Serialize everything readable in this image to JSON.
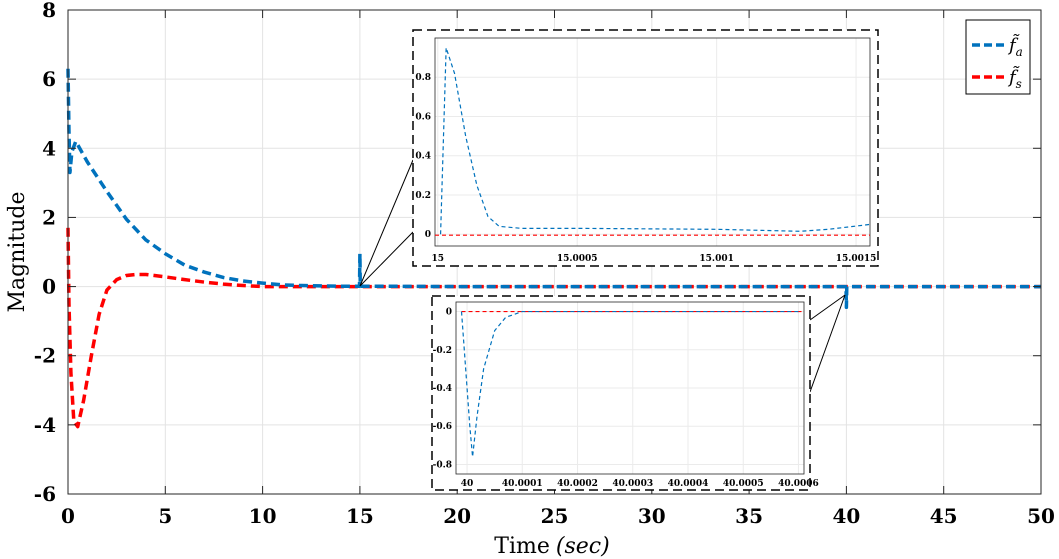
{
  "chart_data": [
    {
      "id": "main",
      "type": "line",
      "title": "",
      "xlabel": "Time",
      "xlabel_unit": "(sec)",
      "ylabel": "Magnitude",
      "xlim": [
        0,
        50
      ],
      "ylim": [
        -6,
        8
      ],
      "xticks": [
        "0",
        "5",
        "10",
        "15",
        "20",
        "25",
        "30",
        "35",
        "40",
        "45",
        "50"
      ],
      "yticks": [
        "-6",
        "-4",
        "-2",
        "0",
        "2",
        "4",
        "6",
        "8"
      ],
      "grid": true,
      "legend_position": "top-right",
      "series": [
        {
          "name": "f̃_a",
          "legend_base": "f̃",
          "legend_sub": "a",
          "color": "#0072BD",
          "style": "dashed",
          "points": [
            [
              0,
              6.3
            ],
            [
              0.05,
              4.5
            ],
            [
              0.1,
              3.3
            ],
            [
              0.2,
              3.9
            ],
            [
              0.4,
              4.2
            ],
            [
              1,
              3.6
            ],
            [
              2,
              2.75
            ],
            [
              3,
              1.95
            ],
            [
              4,
              1.35
            ],
            [
              5,
              0.95
            ],
            [
              6,
              0.62
            ],
            [
              7,
              0.42
            ],
            [
              8,
              0.26
            ],
            [
              9,
              0.16
            ],
            [
              10,
              0.1
            ],
            [
              11,
              0.05
            ],
            [
              12,
              0.03
            ],
            [
              13,
              0.02
            ],
            [
              14,
              0.01
            ],
            [
              14.98,
              0.01
            ],
            [
              15,
              0.95
            ],
            [
              15.02,
              0.01
            ],
            [
              16,
              0.01
            ],
            [
              20,
              0
            ],
            [
              25,
              0
            ],
            [
              30,
              0
            ],
            [
              35,
              0
            ],
            [
              39.98,
              0
            ],
            [
              40,
              -0.6
            ],
            [
              40.02,
              0
            ],
            [
              45,
              0
            ],
            [
              50,
              0
            ]
          ]
        },
        {
          "name": "f̃_s",
          "legend_base": "f̃",
          "legend_sub": "s",
          "color": "#FF0000",
          "style": "dashed",
          "points": [
            [
              0,
              1.7
            ],
            [
              0.05,
              -0.5
            ],
            [
              0.15,
              -2.5
            ],
            [
              0.3,
              -3.9
            ],
            [
              0.5,
              -4.05
            ],
            [
              0.8,
              -3.3
            ],
            [
              1.2,
              -2.0
            ],
            [
              1.6,
              -0.8
            ],
            [
              2,
              -0.1
            ],
            [
              2.5,
              0.2
            ],
            [
              3,
              0.32
            ],
            [
              3.5,
              0.35
            ],
            [
              4,
              0.35
            ],
            [
              5,
              0.28
            ],
            [
              6,
              0.2
            ],
            [
              7,
              0.13
            ],
            [
              8,
              0.07
            ],
            [
              9,
              0.03
            ],
            [
              10,
              0
            ],
            [
              15,
              0
            ],
            [
              20,
              0
            ],
            [
              30,
              0
            ],
            [
              40,
              0
            ],
            [
              50,
              0
            ]
          ]
        }
      ]
    },
    {
      "id": "inset-top",
      "type": "line",
      "xlim": [
        14.99999,
        15.00155
      ],
      "ylim": [
        -0.06,
        1.0
      ],
      "xticks": [
        "15",
        "15.0005",
        "15.001",
        "15.0015"
      ],
      "yticks": [
        "0",
        "0.2",
        "0.4",
        "0.6",
        "0.8"
      ],
      "series": [
        {
          "name": "f̃_a",
          "color": "#0072BD",
          "style": "dashed",
          "points": [
            [
              15.00001,
              0.0
            ],
            [
              15.00003,
              0.95
            ],
            [
              15.00006,
              0.82
            ],
            [
              15.0001,
              0.5
            ],
            [
              15.00014,
              0.25
            ],
            [
              15.00018,
              0.09
            ],
            [
              15.00022,
              0.04
            ],
            [
              15.0003,
              0.03
            ],
            [
              15.0005,
              0.03
            ],
            [
              15.001,
              0.025
            ],
            [
              15.0013,
              0.015
            ],
            [
              15.0014,
              0.025
            ],
            [
              15.00155,
              0.05
            ]
          ]
        },
        {
          "name": "f̃_s",
          "color": "#FF0000",
          "style": "dashed",
          "points": [
            [
              14.99999,
              -0.005
            ],
            [
              15.00155,
              -0.005
            ]
          ]
        }
      ]
    },
    {
      "id": "inset-bottom",
      "type": "line",
      "xlim": [
        39.99998,
        40.00061
      ],
      "ylim": [
        -0.85,
        0.05
      ],
      "xticks": [
        "40",
        "40.0001",
        "40.0002",
        "40.0003",
        "40.0004",
        "40.0005",
        "40.0006"
      ],
      "yticks": [
        "0",
        "-0.2",
        "-0.4",
        "-0.6",
        "-0.8"
      ],
      "series": [
        {
          "name": "f̃_a",
          "color": "#0072BD",
          "style": "dashed",
          "points": [
            [
              39.99999,
              0
            ],
            [
              40.000005,
              -0.6
            ],
            [
              40.00001,
              -0.76
            ],
            [
              40.000018,
              -0.55
            ],
            [
              40.00003,
              -0.3
            ],
            [
              40.00005,
              -0.1
            ],
            [
              40.00007,
              -0.03
            ],
            [
              40.0001,
              0
            ],
            [
              40.0006,
              0
            ]
          ]
        },
        {
          "name": "f̃_s",
          "color": "#FF0000",
          "style": "dashed",
          "points": [
            [
              39.99999,
              0
            ],
            [
              40.00061,
              0
            ]
          ]
        }
      ]
    }
  ]
}
